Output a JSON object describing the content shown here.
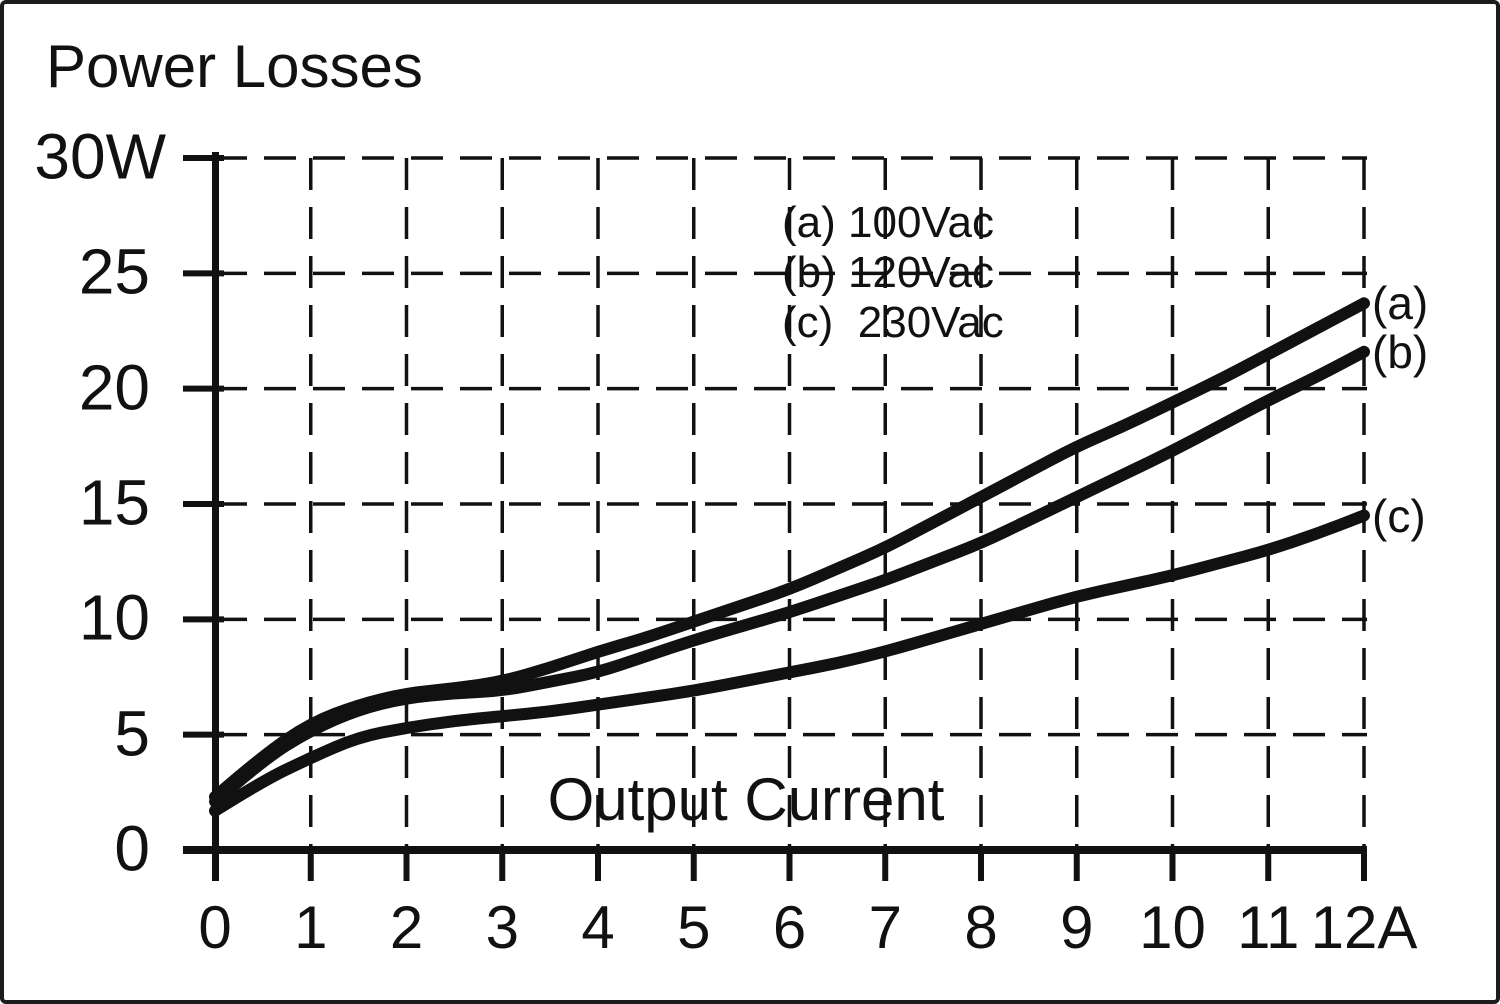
{
  "page": {
    "title": "Power Losses"
  },
  "y_axis": {
    "unit": "W",
    "labels": [
      {
        "text": "30W",
        "value": 30
      },
      {
        "text": "25",
        "value": 25
      },
      {
        "text": "20",
        "value": 20
      },
      {
        "text": "15",
        "value": 15
      },
      {
        "text": "10",
        "value": 10
      },
      {
        "text": "5",
        "value": 5
      },
      {
        "text": "0",
        "value": 0
      }
    ]
  },
  "x_axis": {
    "title": "Output Current",
    "unit": "A",
    "labels": [
      {
        "text": "0",
        "value": 0
      },
      {
        "text": "1",
        "value": 1
      },
      {
        "text": "2",
        "value": 2
      },
      {
        "text": "3",
        "value": 3
      },
      {
        "text": "4",
        "value": 4
      },
      {
        "text": "5",
        "value": 5
      },
      {
        "text": "6",
        "value": 6
      },
      {
        "text": "7",
        "value": 7
      },
      {
        "text": "8",
        "value": 8
      },
      {
        "text": "9",
        "value": 9
      },
      {
        "text": "10",
        "value": 10
      },
      {
        "text": "11",
        "value": 11
      },
      {
        "text": "12A",
        "value": 12
      }
    ]
  },
  "legend": {
    "lines": [
      "(a) 100Vac",
      "(b) 120Vac",
      "(c)  230Vac"
    ]
  },
  "chart_data": {
    "type": "line",
    "title": "Power Losses",
    "xlabel": "Output Current",
    "ylabel": "Power Losses",
    "x_unit": "A",
    "y_unit": "W",
    "xlim": [
      0,
      12
    ],
    "ylim": [
      0,
      30
    ],
    "x_ticks": [
      0,
      1,
      2,
      3,
      4,
      5,
      6,
      7,
      8,
      9,
      10,
      11,
      12
    ],
    "y_ticks": [
      0,
      5,
      10,
      15,
      20,
      25,
      30
    ],
    "grid": "dashed",
    "legend_position": "inside-top-center",
    "line_color": "#111111",
    "background": "#ffffff",
    "x": [
      0,
      0.5,
      1,
      1.5,
      2,
      2.5,
      3,
      3.5,
      4,
      4.5,
      5,
      5.5,
      6,
      6.5,
      7,
      7.5,
      8,
      8.5,
      9,
      9.5,
      10,
      10.5,
      11,
      11.5,
      12
    ],
    "series": [
      {
        "key": "a",
        "name": "(a) 100Vac",
        "end_label": "(a)",
        "values": [
          2.3,
          4.1,
          5.5,
          6.3,
          6.8,
          7.0,
          7.3,
          7.9,
          8.6,
          9.2,
          9.9,
          10.6,
          11.3,
          12.2,
          13.1,
          14.2,
          15.3,
          16.4,
          17.5,
          18.4,
          19.4,
          20.4,
          21.5,
          22.6,
          23.7
        ]
      },
      {
        "key": "b",
        "name": "(b) 120Vac",
        "end_label": "(b)",
        "values": [
          2.1,
          3.9,
          5.2,
          6.1,
          6.6,
          6.8,
          6.9,
          7.3,
          7.7,
          8.4,
          9.1,
          9.7,
          10.3,
          11.0,
          11.7,
          12.5,
          13.3,
          14.3,
          15.3,
          16.3,
          17.3,
          18.4,
          19.5,
          20.5,
          21.6
        ]
      },
      {
        "key": "c",
        "name": "(c) 230Vac",
        "end_label": "(c)",
        "values": [
          1.7,
          3.0,
          4.0,
          4.9,
          5.3,
          5.6,
          5.8,
          6.0,
          6.3,
          6.6,
          6.9,
          7.3,
          7.7,
          8.1,
          8.6,
          9.2,
          9.8,
          10.4,
          11.0,
          11.45,
          11.9,
          12.45,
          13.0,
          13.7,
          14.5
        ]
      }
    ]
  }
}
